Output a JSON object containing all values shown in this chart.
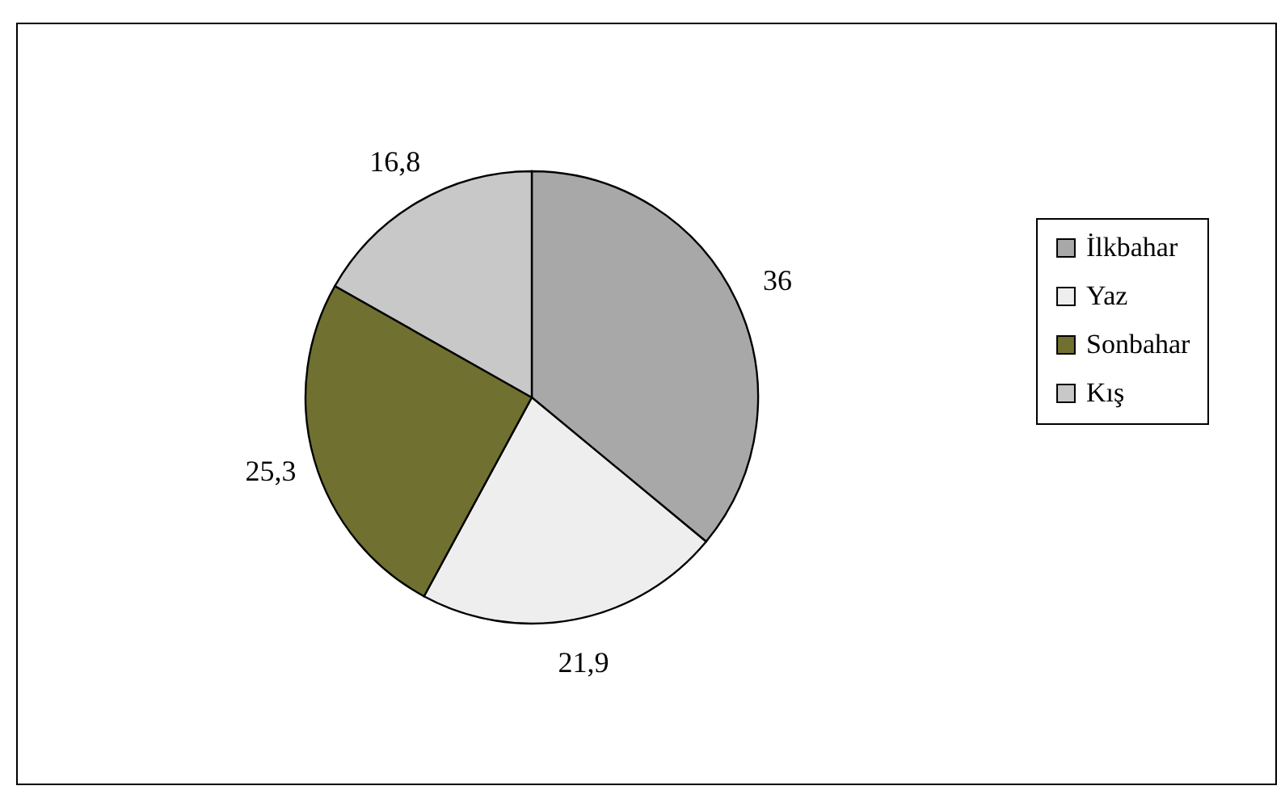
{
  "chart_data": {
    "type": "pie",
    "categories": [
      "İlkbahar",
      "Yaz",
      "Sonbahar",
      "Kış"
    ],
    "values": [
      36,
      21.9,
      25.3,
      16.8
    ],
    "colors": [
      "#a8a8a8",
      "#eeeeee",
      "#707030",
      "#c8c8c8"
    ],
    "value_labels": [
      "36",
      "21,9",
      "25,3",
      "16,8"
    ],
    "legend": "right"
  }
}
